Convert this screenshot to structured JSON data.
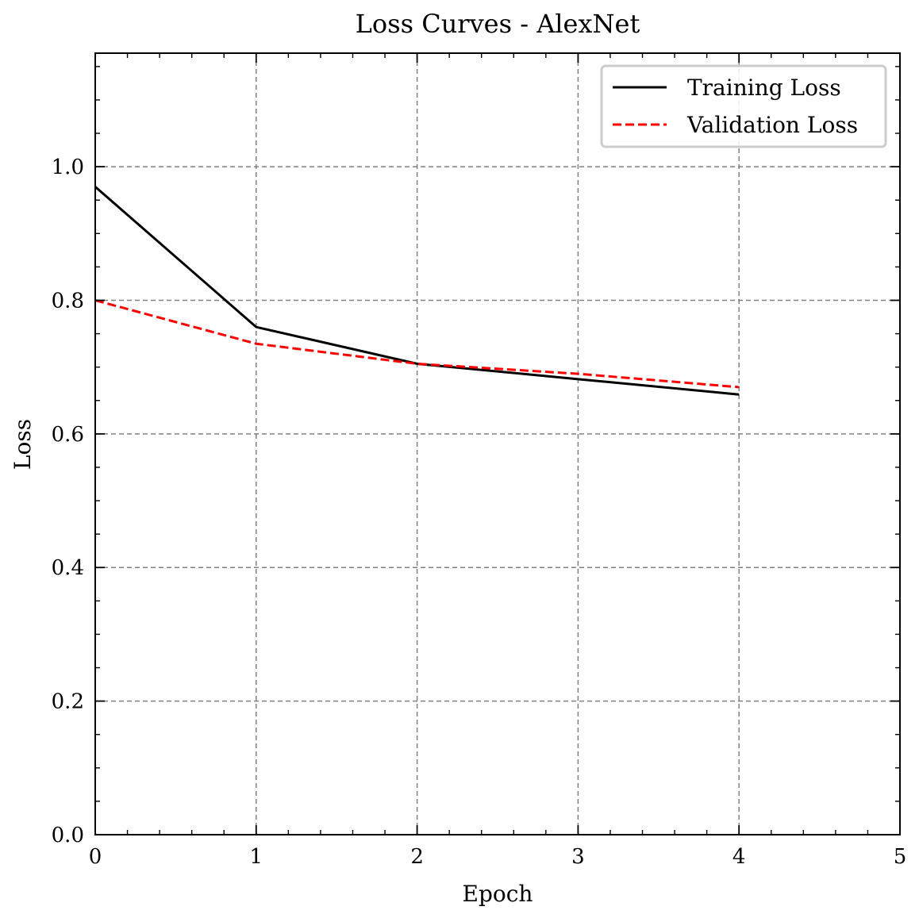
{
  "chart_data": {
    "type": "line",
    "title": "Loss Curves - AlexNet",
    "xlabel": "Epoch",
    "ylabel": "Loss",
    "xlim": [
      0,
      5
    ],
    "ylim": [
      0,
      1.17
    ],
    "xticks": [
      0,
      1,
      2,
      3,
      4,
      5
    ],
    "xtick_labels": [
      "0",
      "1",
      "2",
      "3",
      "4",
      "5"
    ],
    "yticks": [
      0.0,
      0.2,
      0.4,
      0.6,
      0.8,
      1.0
    ],
    "ytick_labels": [
      "0.0",
      "0.2",
      "0.4",
      "0.6",
      "0.8",
      "1.0"
    ],
    "grid": true,
    "legend_position": "top-right",
    "x": [
      0,
      1,
      2,
      3,
      4
    ],
    "series": [
      {
        "name": "Training Loss",
        "values": [
          0.97,
          0.76,
          0.705,
          0.682,
          0.659
        ],
        "color": "#000000",
        "style": "solid"
      },
      {
        "name": "Validation Loss",
        "values": [
          0.8,
          0.735,
          0.705,
          0.69,
          0.67
        ],
        "color": "#ff0000",
        "style": "dashed"
      }
    ]
  }
}
